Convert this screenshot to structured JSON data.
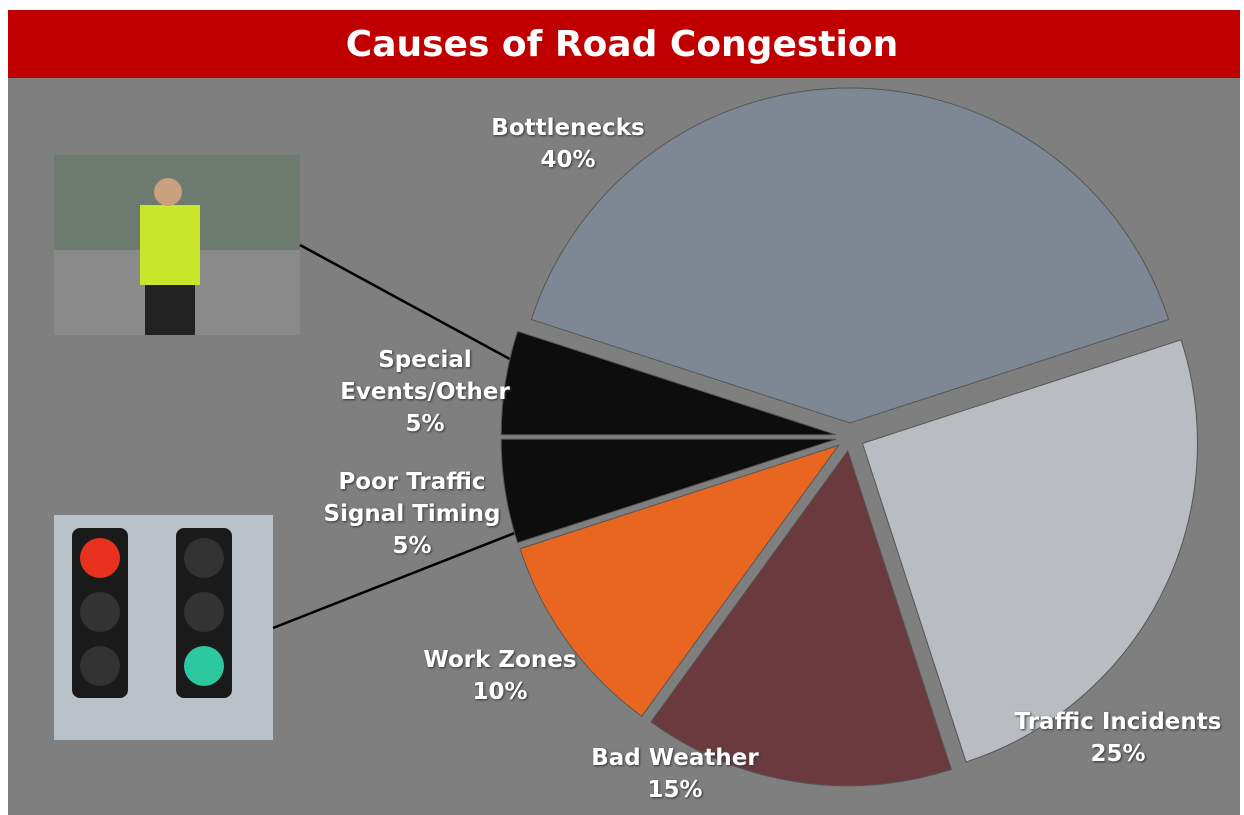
{
  "chart_data": {
    "type": "pie",
    "title": "Causes of Road Congestion",
    "categories": [
      "Bottlenecks",
      "Traffic Incidents",
      "Bad Weather",
      "Work Zones",
      "Poor Traffic Signal Timing",
      "Special Events/Other"
    ],
    "values": [
      40,
      25,
      15,
      10,
      5,
      5
    ],
    "value_labels": [
      "40%",
      "25%",
      "15%",
      "10%",
      "5%",
      "5%"
    ],
    "colors": [
      "#7d8894",
      "#b9bcc1",
      "#6b3a3f",
      "#e8661f",
      "#0d0d0d",
      "#0d0d0d"
    ]
  }
}
